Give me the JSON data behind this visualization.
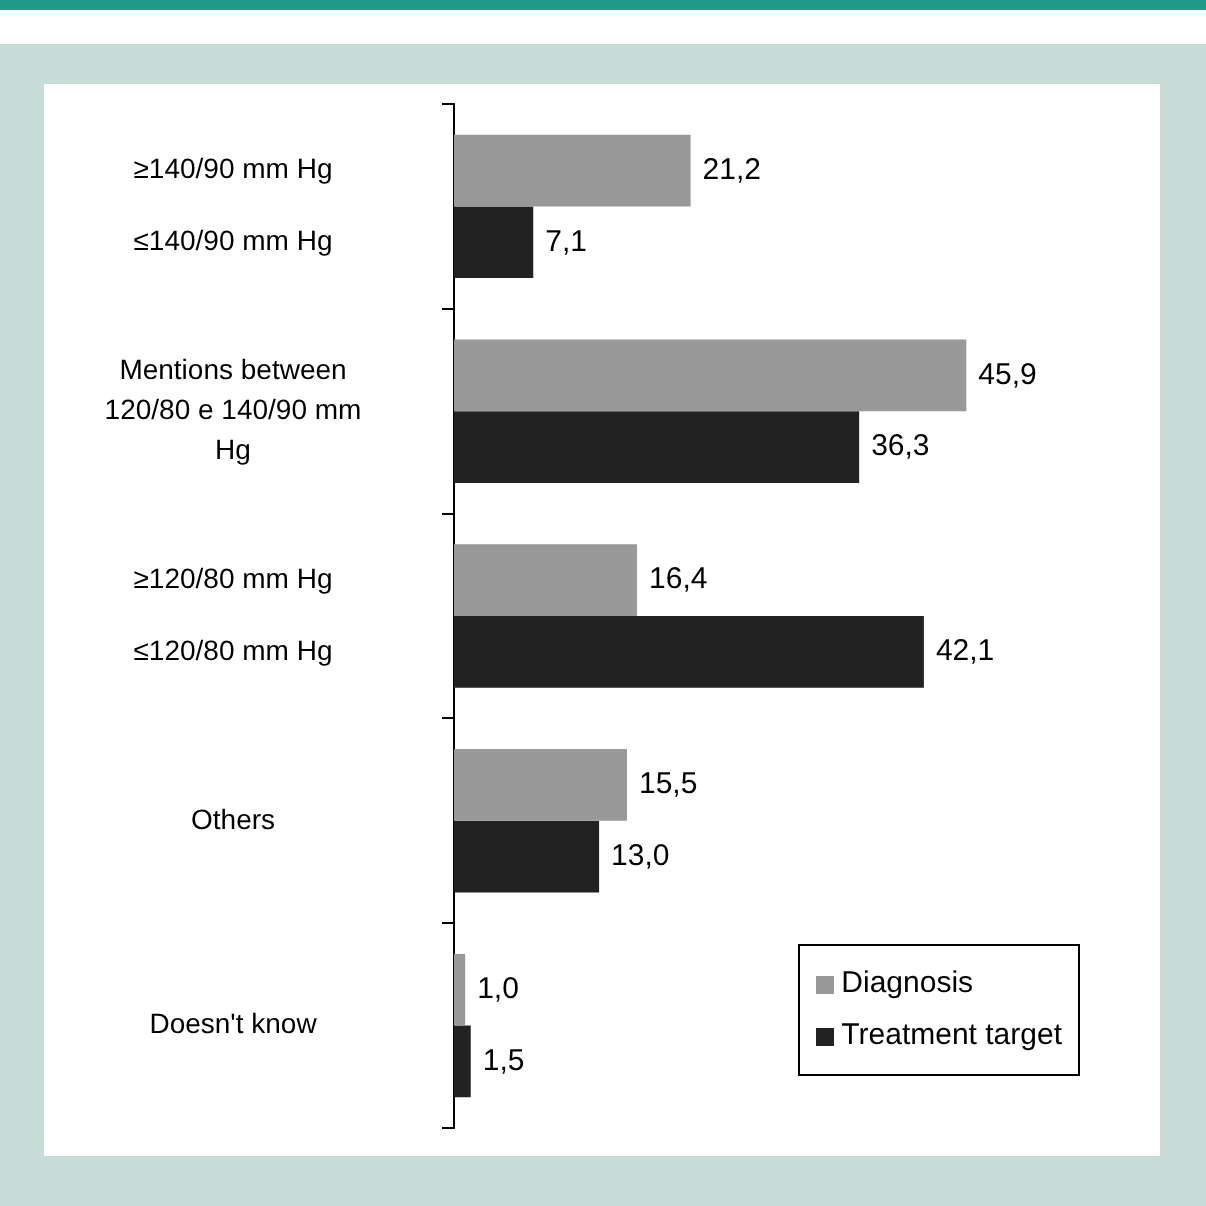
{
  "chart_data": {
    "type": "bar",
    "orientation": "horizontal",
    "categories": [
      "≥140/90 mm Hg\n≤140/90 mm Hg",
      "Mentions between 120/80 e 140/90 mm Hg",
      "≥120/80 mm Hg\n≤120/80 mm Hg",
      "Others",
      "Doesn't know"
    ],
    "series": [
      {
        "name": "Diagnosis",
        "color": "#999999",
        "values": [
          21.2,
          45.9,
          16.4,
          15.5,
          1.0
        ],
        "value_labels": [
          "21,2",
          "45,9",
          "16,4",
          "15,5",
          "1,0"
        ]
      },
      {
        "name": "Treatment target",
        "color": "#222222",
        "values": [
          7.1,
          36.3,
          42.1,
          13.0,
          1.5
        ],
        "value_labels": [
          "7,1",
          "36,3",
          "42,1",
          "13,0",
          "1,5"
        ]
      }
    ],
    "legend": "bottom right"
  }
}
